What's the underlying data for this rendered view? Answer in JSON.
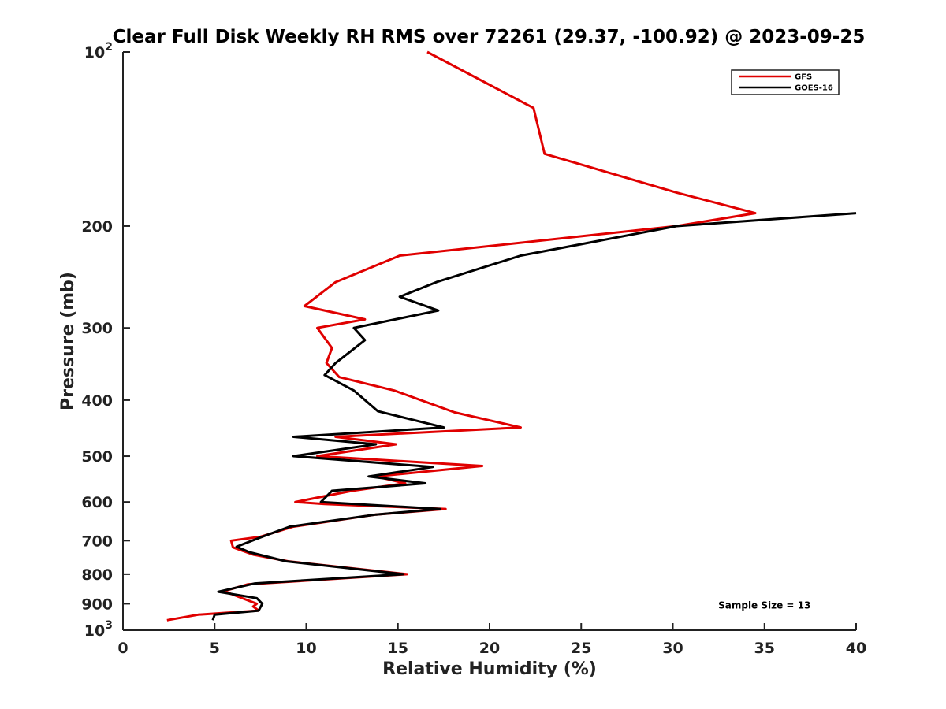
{
  "chart_data": {
    "type": "line",
    "title": "Clear Full Disk Weekly RH RMS over 72261 (29.37, -100.92) @ 2023-09-25",
    "xlabel": "Relative Humidity (%)",
    "ylabel": "Pressure (mb)",
    "xlim": [
      0,
      40
    ],
    "ylim": [
      100,
      1000
    ],
    "y_scale": "log",
    "y_reversed": true,
    "grid": false,
    "legend_position": "top-right",
    "x_ticks": [
      "0",
      "5",
      "10",
      "15",
      "20",
      "25",
      "30",
      "35",
      "40"
    ],
    "y_ticks": [
      {
        "value": 100,
        "base": "10",
        "exp": "2"
      },
      {
        "value": 200,
        "label": "200"
      },
      {
        "value": 300,
        "label": "300"
      },
      {
        "value": 400,
        "label": "400"
      },
      {
        "value": 500,
        "label": "500"
      },
      {
        "value": 600,
        "label": "600"
      },
      {
        "value": 700,
        "label": "700"
      },
      {
        "value": 800,
        "label": "800"
      },
      {
        "value": 900,
        "label": "900"
      },
      {
        "value": 1000,
        "base": "10",
        "exp": "3"
      }
    ],
    "series": [
      {
        "name": "GFS",
        "color": "#e00000",
        "points": [
          [
            16.6,
            100
          ],
          [
            22.4,
            125
          ],
          [
            23.0,
            150
          ],
          [
            30.2,
            175
          ],
          [
            34.5,
            190
          ],
          [
            30.2,
            200
          ],
          [
            15.1,
            225
          ],
          [
            11.6,
            250
          ],
          [
            9.9,
            275
          ],
          [
            13.2,
            290
          ],
          [
            10.6,
            300
          ],
          [
            11.4,
            325
          ],
          [
            11.1,
            345
          ],
          [
            11.8,
            365
          ],
          [
            14.8,
            385
          ],
          [
            18.1,
            420
          ],
          [
            21.7,
            446
          ],
          [
            11.6,
            463
          ],
          [
            14.9,
            477
          ],
          [
            10.6,
            500
          ],
          [
            19.6,
            520
          ],
          [
            13.8,
            542
          ],
          [
            15.4,
            557
          ],
          [
            12.5,
            574
          ],
          [
            9.4,
            600
          ],
          [
            11.0,
            605
          ],
          [
            17.6,
            617
          ],
          [
            13.8,
            631
          ],
          [
            9.3,
            662
          ],
          [
            7.5,
            689
          ],
          [
            5.9,
            700
          ],
          [
            6.0,
            719
          ],
          [
            7.1,
            740
          ],
          [
            9.0,
            760
          ],
          [
            15.5,
            800
          ],
          [
            6.8,
            833
          ],
          [
            5.5,
            856
          ],
          [
            7.3,
            900
          ],
          [
            7.1,
            910
          ],
          [
            7.4,
            925
          ],
          [
            4.1,
            940
          ],
          [
            2.4,
            961
          ]
        ]
      },
      {
        "name": "GOES-16",
        "color": "#000000",
        "points": [
          [
            40.0,
            190
          ],
          [
            30.2,
            200
          ],
          [
            21.7,
            225
          ],
          [
            17.1,
            250
          ],
          [
            15.1,
            265
          ],
          [
            17.2,
            280
          ],
          [
            12.6,
            300
          ],
          [
            13.2,
            315
          ],
          [
            11.6,
            345
          ],
          [
            11.0,
            362
          ],
          [
            12.6,
            385
          ],
          [
            13.9,
            418
          ],
          [
            17.5,
            446
          ],
          [
            9.3,
            463
          ],
          [
            13.8,
            477
          ],
          [
            9.3,
            500
          ],
          [
            16.9,
            522
          ],
          [
            13.4,
            542
          ],
          [
            16.5,
            557
          ],
          [
            11.4,
            574
          ],
          [
            10.8,
            600
          ],
          [
            17.3,
            617
          ],
          [
            13.8,
            631
          ],
          [
            9.1,
            662
          ],
          [
            7.6,
            689
          ],
          [
            6.2,
            717
          ],
          [
            6.9,
            733
          ],
          [
            8.9,
            760
          ],
          [
            15.3,
            800
          ],
          [
            7.2,
            830
          ],
          [
            5.2,
            858
          ],
          [
            7.3,
            880
          ],
          [
            7.6,
            900
          ],
          [
            7.4,
            925
          ],
          [
            5.0,
            940
          ],
          [
            4.9,
            961
          ]
        ]
      }
    ],
    "annotations": [
      {
        "text": "Sample Size = 13",
        "x": 35.0,
        "y": 900
      }
    ]
  }
}
